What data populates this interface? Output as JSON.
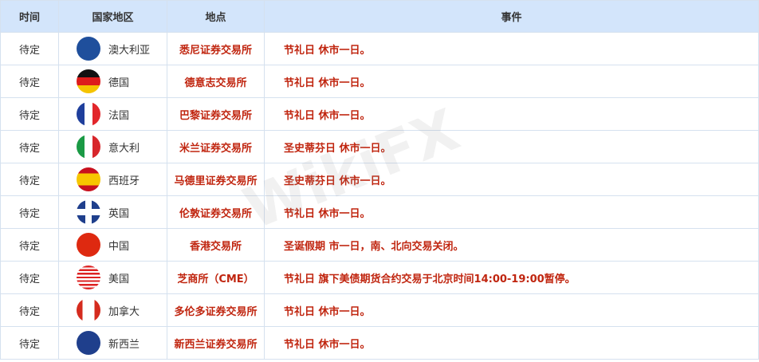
{
  "headers": [
    "时间",
    "国家地区",
    "地点",
    "事件"
  ],
  "rows": [
    {
      "time": "待定",
      "country": "澳大利亚",
      "flag": "australia",
      "place": "悉尼证券交易所",
      "event": "节礼日 休市一日。"
    },
    {
      "time": "待定",
      "country": "德国",
      "flag": "germany",
      "place": "德意志交易所",
      "event": "节礼日 休市一日。"
    },
    {
      "time": "待定",
      "country": "法国",
      "flag": "france",
      "place": "巴黎证券交易所",
      "event": "节礼日 休市一日。"
    },
    {
      "time": "待定",
      "country": "意大利",
      "flag": "italy",
      "place": "米兰证券交易所",
      "event": "圣史蒂芬日 休市一日。"
    },
    {
      "time": "待定",
      "country": "西班牙",
      "flag": "spain",
      "place": "马德里证券交易所",
      "event": "圣史蒂芬日 休市一日。"
    },
    {
      "time": "待定",
      "country": "英国",
      "flag": "uk",
      "place": "伦敦证券交易所",
      "event": "节礼日 休市一日。"
    },
    {
      "time": "待定",
      "country": "中国",
      "flag": "china",
      "place": "香港交易所",
      "event": "圣诞假期 市一日，南、北向交易关闭。"
    },
    {
      "time": "待定",
      "country": "美国",
      "flag": "usa",
      "place": "芝商所（CME）",
      "event": "节礼日 旗下美债期货合约交易于北京时间14:00-19:00暂停。"
    },
    {
      "time": "待定",
      "country": "加拿大",
      "flag": "canada",
      "place": "多伦多证券交易所",
      "event": "节礼日 休市一日。"
    },
    {
      "time": "待定",
      "country": "新西兰",
      "flag": "new-zealand",
      "place": "新西兰证券交易所",
      "event": "节礼日 休市一日。"
    }
  ],
  "watermark": "WikiFX",
  "colors": {
    "header_bg": "#d3e5fb",
    "accent_text": "#c0250f"
  }
}
